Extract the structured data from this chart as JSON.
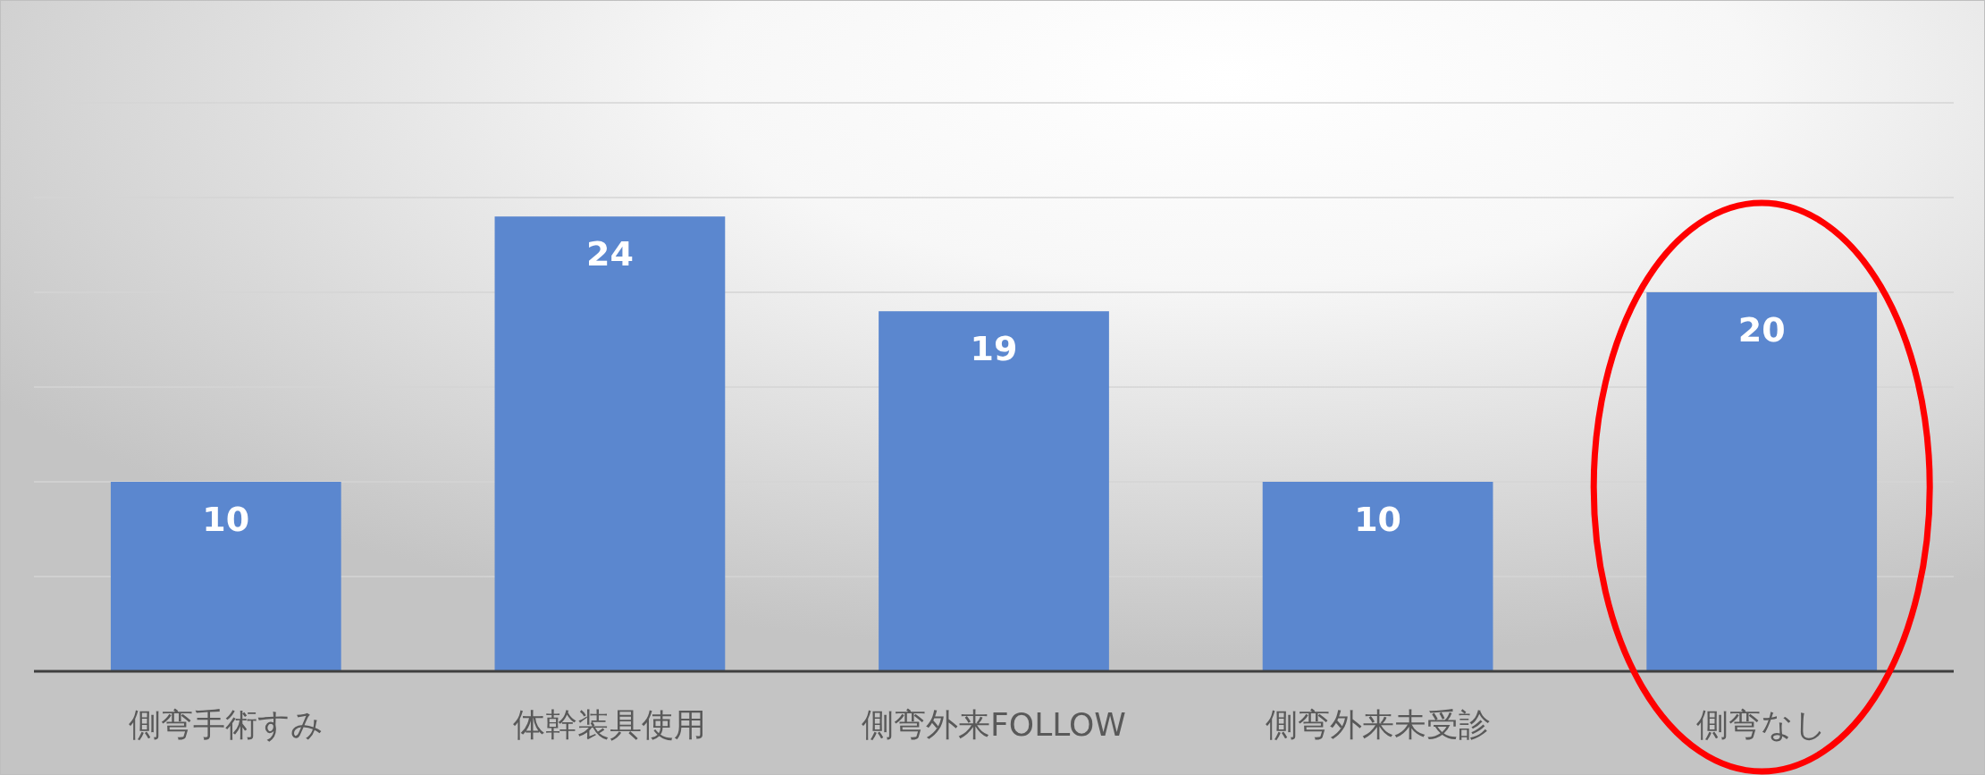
{
  "chart_data": {
    "type": "bar",
    "categories": [
      "側弯手術すみ",
      "体幹装具使用",
      "側弯外来FOLLOW",
      "側弯外来未受診",
      "側弯なし"
    ],
    "values": [
      10,
      24,
      19,
      10,
      20
    ],
    "color": "#5b87cf",
    "data_labels": true,
    "ylim": [
      0,
      30
    ],
    "yticks": [
      {
        "value": 0,
        "label": null
      },
      {
        "value": 5,
        "label": null
      },
      {
        "value": 10,
        "label": null
      },
      {
        "value": 15,
        "label": null
      },
      {
        "value": 20,
        "label": null
      },
      {
        "value": 25,
        "label": null
      },
      {
        "value": 30,
        "label": null
      }
    ],
    "grid": "y",
    "tick_labels": "x"
  }
}
